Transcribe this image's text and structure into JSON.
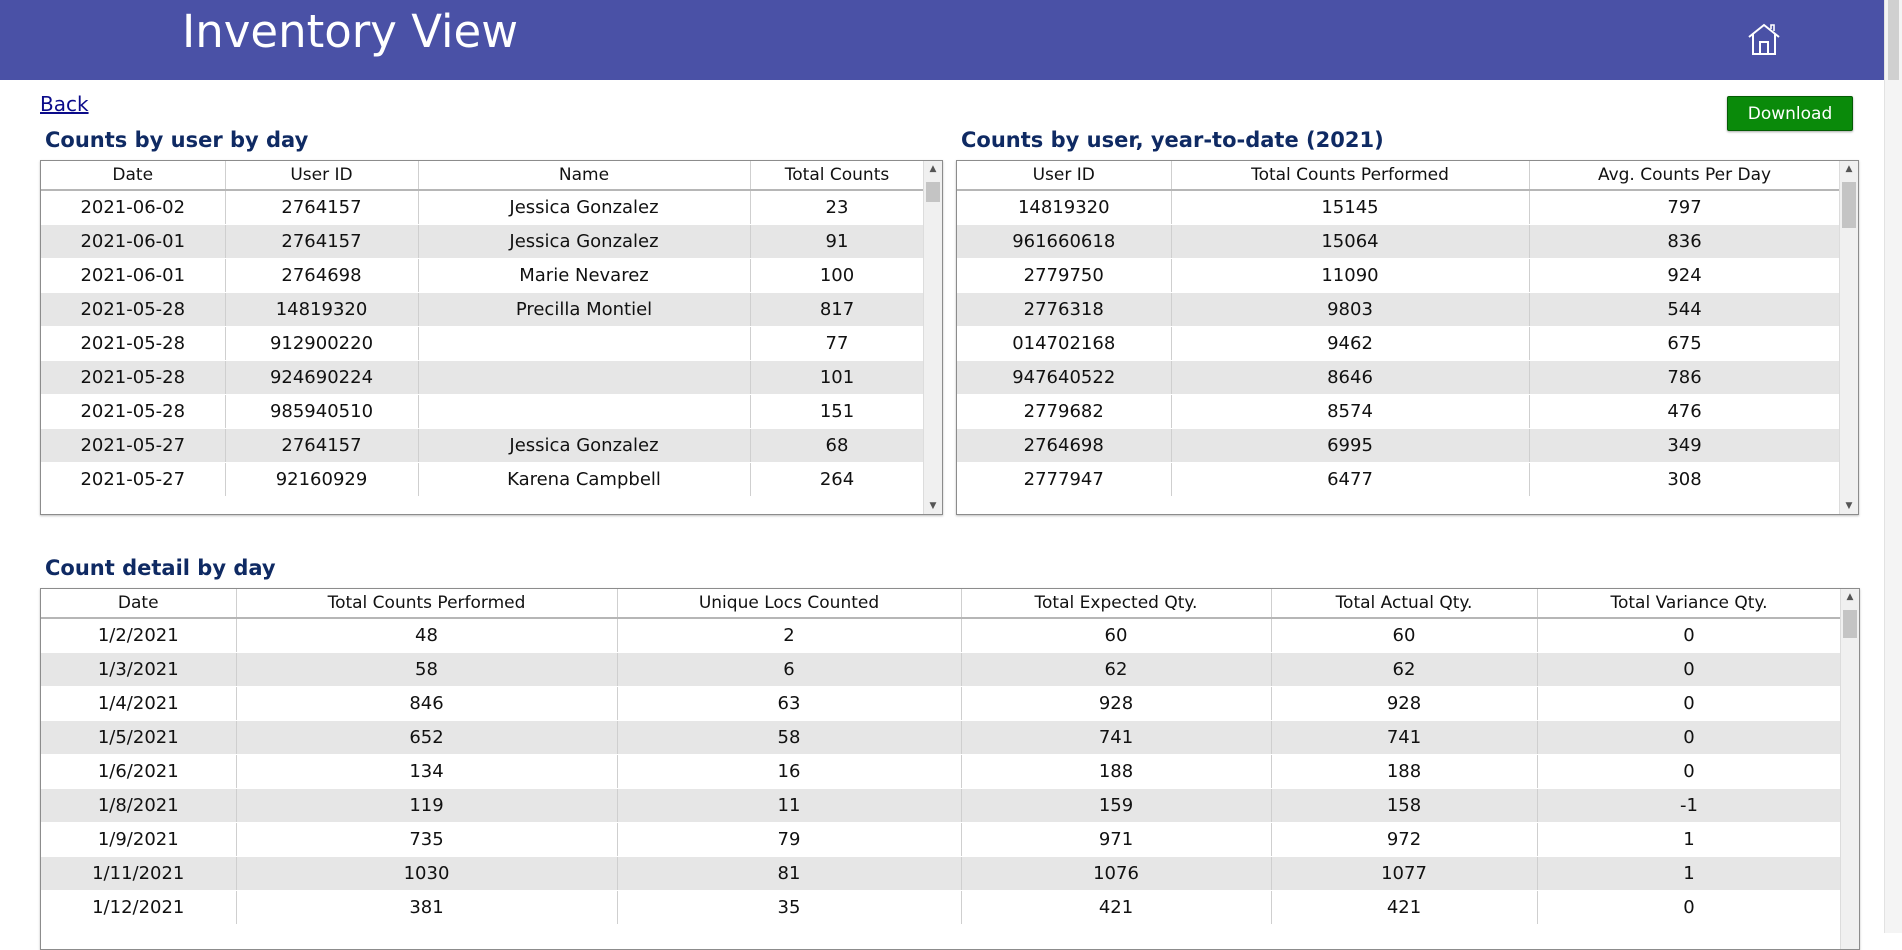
{
  "header": {
    "title": "Inventory View",
    "home_icon": "home-icon",
    "color": "#4a51a6"
  },
  "nav": {
    "back_label": "Back",
    "download_label": "Download"
  },
  "counts_by_user_by_day": {
    "title": "Counts by user by day",
    "columns": [
      "Date",
      "User ID",
      "Name",
      "Total Counts"
    ],
    "rows": [
      [
        "2021-06-02",
        "2764157",
        "Jessica Gonzalez",
        "23"
      ],
      [
        "2021-06-01",
        "2764157",
        "Jessica Gonzalez",
        "91"
      ],
      [
        "2021-06-01",
        "2764698",
        "Marie Nevarez",
        "100"
      ],
      [
        "2021-05-28",
        "14819320",
        "Precilla Montiel",
        "817"
      ],
      [
        "2021-05-28",
        "912900220",
        "",
        "77"
      ],
      [
        "2021-05-28",
        "924690224",
        "",
        "101"
      ],
      [
        "2021-05-28",
        "985940510",
        "",
        "151"
      ],
      [
        "2021-05-27",
        "2764157",
        "Jessica Gonzalez",
        "68"
      ],
      [
        "2021-05-27",
        "92160929",
        "Karena Campbell",
        "264"
      ]
    ]
  },
  "counts_by_user_ytd": {
    "title": "Counts by user, year-to-date (2021)",
    "columns": [
      "User ID",
      "Total Counts Performed",
      "Avg. Counts Per Day"
    ],
    "rows": [
      [
        "14819320",
        "15145",
        "797"
      ],
      [
        "961660618",
        "15064",
        "836"
      ],
      [
        "2779750",
        "11090",
        "924"
      ],
      [
        "2776318",
        "9803",
        "544"
      ],
      [
        "014702168",
        "9462",
        "675"
      ],
      [
        "947640522",
        "8646",
        "786"
      ],
      [
        "2779682",
        "8574",
        "476"
      ],
      [
        "2764698",
        "6995",
        "349"
      ],
      [
        "2777947",
        "6477",
        "308"
      ]
    ]
  },
  "count_detail_by_day": {
    "title": "Count detail by day",
    "columns": [
      "Date",
      "Total Counts Performed",
      "Unique Locs Counted",
      "Total Expected Qty.",
      "Total Actual Qty.",
      "Total Variance Qty."
    ],
    "rows": [
      [
        "1/2/2021",
        "48",
        "2",
        "60",
        "60",
        "0"
      ],
      [
        "1/3/2021",
        "58",
        "6",
        "62",
        "62",
        "0"
      ],
      [
        "1/4/2021",
        "846",
        "63",
        "928",
        "928",
        "0"
      ],
      [
        "1/5/2021",
        "652",
        "58",
        "741",
        "741",
        "0"
      ],
      [
        "1/6/2021",
        "134",
        "16",
        "188",
        "188",
        "0"
      ],
      [
        "1/8/2021",
        "119",
        "11",
        "159",
        "158",
        "-1"
      ],
      [
        "1/9/2021",
        "735",
        "79",
        "971",
        "972",
        "1"
      ],
      [
        "1/11/2021",
        "1030",
        "81",
        "1076",
        "1077",
        "1"
      ],
      [
        "1/12/2021",
        "381",
        "35",
        "421",
        "421",
        "0"
      ]
    ]
  }
}
